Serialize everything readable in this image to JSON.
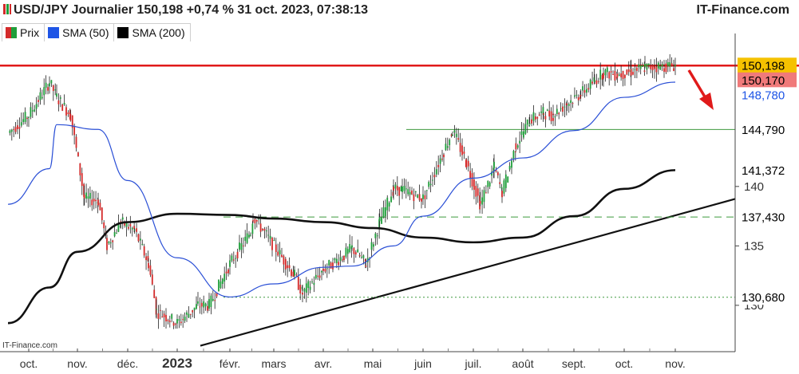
{
  "header": {
    "title": "USD/JPY Journalier 150,198 +0,74 % 31 oct. 2023, 07:38:13",
    "brand": "IT-Finance.com"
  },
  "watermark": "IT-Finance.com",
  "legend": [
    {
      "label": "Prix",
      "icon": "price-candle-icon",
      "color": "#3aa655"
    },
    {
      "label": "SMA (50)",
      "color": "#1e55e6"
    },
    {
      "label": "SMA (200)",
      "color": "#000000"
    }
  ],
  "colors": {
    "up": "#1f9e3a",
    "down": "#d42a2a",
    "sma50": "#2a4fd6",
    "sma200": "#111111",
    "resistance": "#e01a1a",
    "support": "#3f9a3f",
    "trend": "#111111"
  },
  "chart_data": {
    "type": "candlestick",
    "ylim": [
      126.3,
      152.2
    ],
    "x_tick_labels": [
      "oct.",
      "nov.",
      "déc.",
      "2023",
      "févr.",
      "mars",
      "avr.",
      "mai",
      "juin",
      "juil.",
      "août",
      "sept.",
      "oct.",
      "nov."
    ],
    "y_ticks": [
      {
        "value": 140,
        "label": "140"
      },
      {
        "value": 135,
        "label": "135"
      },
      {
        "value": 130,
        "label": "130"
      }
    ],
    "price_tags": [
      {
        "value": 150.198,
        "label": "150,198",
        "bg": "#f5c200",
        "fg": "#000000"
      },
      {
        "value": 150.17,
        "label": "150,170",
        "bg": "#f07a7a",
        "fg": "#000000"
      },
      {
        "value": 148.78,
        "label": "148,780",
        "bg": "#ffffff",
        "fg": "#1e55e6"
      },
      {
        "value": 144.79,
        "label": "144,790",
        "bg": "#ffffff",
        "fg": "#000000"
      },
      {
        "value": 141.372,
        "label": "141,372",
        "bg": "#ffffff",
        "fg": "#000000"
      },
      {
        "value": 137.43,
        "label": "137,430",
        "bg": "#ffffff",
        "fg": "#000000"
      },
      {
        "value": 130.68,
        "label": "130,680",
        "bg": "#ffffff",
        "fg": "#000000"
      }
    ],
    "horizontal_levels": [
      {
        "value": 150.17,
        "style": "resistance"
      },
      {
        "value": 144.79,
        "style": "support",
        "from_month": "juin"
      },
      {
        "value": 137.43,
        "style": "dashed",
        "from_month": "févr."
      },
      {
        "value": 130.68,
        "style": "dotted",
        "from_month": "févr."
      }
    ],
    "trendline": [
      {
        "month": "févr.",
        "value": 126.6
      },
      {
        "month": "nov.",
        "value": 138.3
      }
    ],
    "price_path": [
      {
        "month": "oct.",
        "value": 144.5
      },
      {
        "month": "oct.",
        "value": 146.0
      },
      {
        "month": "oct.",
        "value": 148.8
      },
      {
        "month": "nov.",
        "value": 147.5
      },
      {
        "month": "nov.",
        "value": 146.0
      },
      {
        "month": "nov.",
        "value": 139.0
      },
      {
        "month": "nov.",
        "value": 138.8
      },
      {
        "month": "déc.",
        "value": 135.0
      },
      {
        "month": "déc.",
        "value": 137.0
      },
      {
        "month": "déc.",
        "value": 136.3
      },
      {
        "month": "déc.",
        "value": 133.5
      },
      {
        "month": "2023",
        "value": 129.5
      },
      {
        "month": "2023",
        "value": 128.5
      },
      {
        "month": "2023",
        "value": 130.0
      },
      {
        "month": "févr.",
        "value": 130.0
      },
      {
        "month": "févr.",
        "value": 133.5
      },
      {
        "month": "févr.",
        "value": 136.2
      },
      {
        "month": "mars",
        "value": 137.5
      },
      {
        "month": "mars",
        "value": 132.5
      },
      {
        "month": "avr.",
        "value": 131.0
      },
      {
        "month": "avr.",
        "value": 133.0
      },
      {
        "month": "avr.",
        "value": 134.2
      },
      {
        "month": "mai",
        "value": 134.8
      },
      {
        "month": "mai",
        "value": 133.5
      },
      {
        "month": "mai",
        "value": 137.0
      },
      {
        "month": "mai",
        "value": 139.8
      },
      {
        "month": "juin",
        "value": 139.7
      },
      {
        "month": "juin",
        "value": 139.0
      },
      {
        "month": "juin",
        "value": 143.0
      },
      {
        "month": "juil.",
        "value": 144.7
      },
      {
        "month": "juil.",
        "value": 142.0
      },
      {
        "month": "juil.",
        "value": 138.5
      },
      {
        "month": "juil.",
        "value": 141.6
      },
      {
        "month": "août",
        "value": 139.5
      },
      {
        "month": "août",
        "value": 143.5
      },
      {
        "month": "août",
        "value": 145.6
      },
      {
        "month": "août",
        "value": 146.2
      },
      {
        "month": "sept.",
        "value": 146.0
      },
      {
        "month": "sept.",
        "value": 147.0
      },
      {
        "month": "sept.",
        "value": 147.8
      },
      {
        "month": "sept.",
        "value": 148.9
      },
      {
        "month": "oct.",
        "value": 149.6
      },
      {
        "month": "oct.",
        "value": 149.4
      },
      {
        "month": "oct.",
        "value": 149.7
      },
      {
        "month": "oct.",
        "value": 150.0
      },
      {
        "month": "nov.",
        "value": 150.198
      }
    ],
    "sma50": [
      {
        "month": "oct.",
        "value": 138.5
      },
      {
        "month": "oct.",
        "value": 141.5
      },
      {
        "month": "nov.",
        "value": 145.2
      },
      {
        "month": "nov.",
        "value": 144.8
      },
      {
        "month": "déc.",
        "value": 140.5
      },
      {
        "month": "2023",
        "value": 134.0
      },
      {
        "month": "févr.",
        "value": 130.7
      },
      {
        "month": "mars",
        "value": 131.8
      },
      {
        "month": "avr.",
        "value": 133.2
      },
      {
        "month": "mai",
        "value": 133.3
      },
      {
        "month": "mai",
        "value": 135.0
      },
      {
        "month": "juin",
        "value": 137.5
      },
      {
        "month": "juil.",
        "value": 140.7
      },
      {
        "month": "août",
        "value": 142.4
      },
      {
        "month": "sept.",
        "value": 144.7
      },
      {
        "month": "oct.",
        "value": 147.5
      },
      {
        "month": "nov.",
        "value": 148.78
      }
    ],
    "sma200": [
      {
        "month": "oct.",
        "value": 128.5
      },
      {
        "month": "oct.",
        "value": 131.5
      },
      {
        "month": "nov.",
        "value": 134.5
      },
      {
        "month": "déc.",
        "value": 137.0
      },
      {
        "month": "2023",
        "value": 137.7
      },
      {
        "month": "févr.",
        "value": 137.6
      },
      {
        "month": "mars",
        "value": 137.3
      },
      {
        "month": "avr.",
        "value": 137.0
      },
      {
        "month": "mai",
        "value": 136.5
      },
      {
        "month": "juin",
        "value": 135.7
      },
      {
        "month": "juil.",
        "value": 135.3
      },
      {
        "month": "août",
        "value": 135.7
      },
      {
        "month": "sept.",
        "value": 137.5
      },
      {
        "month": "oct.",
        "value": 139.8
      },
      {
        "month": "nov.",
        "value": 141.372
      }
    ]
  }
}
